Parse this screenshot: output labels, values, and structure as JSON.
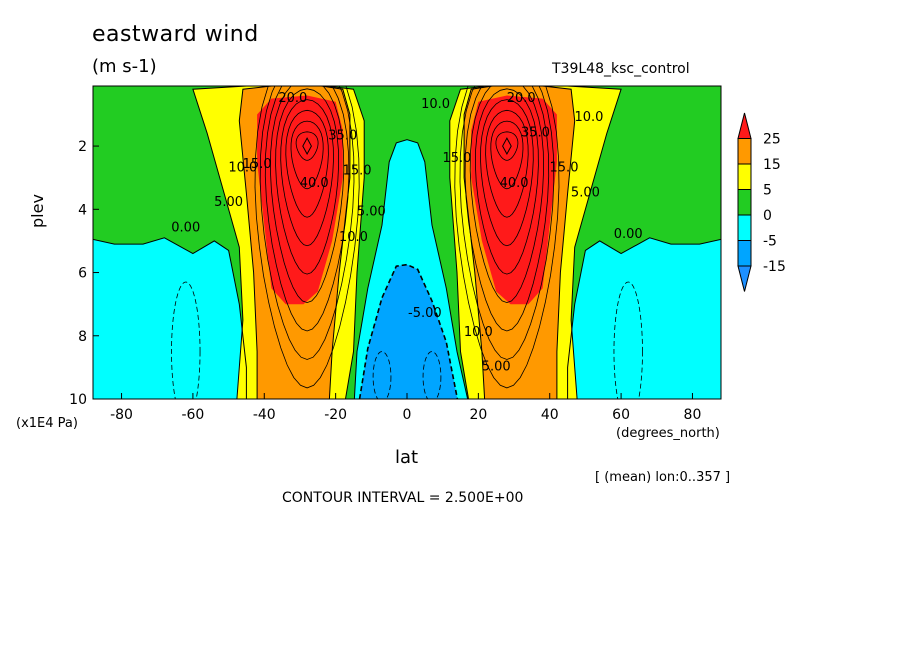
{
  "chart_data": {
    "type": "heatmap",
    "title": "eastward wind",
    "subtitle": "(m s-1)",
    "run_label": "T39L48_ksc_control",
    "xlabel": "lat",
    "x_units": "(degrees_north)",
    "ylabel": "plev",
    "y_units": "(x1E4 Pa)",
    "annotation": "[ (mean) lon:0..357 ]",
    "contour_interval_label": "CONTOUR INTERVAL = 2.500E+00",
    "xlim": [
      -88,
      88
    ],
    "ylim": [
      10,
      0.1
    ],
    "y_reversed": true,
    "x_ticks": [
      -80,
      -60,
      -40,
      -20,
      0,
      20,
      40,
      60,
      80
    ],
    "x_tick_labels": [
      "-80",
      "-60",
      "-40",
      "-20",
      "0",
      "20",
      "40",
      "60",
      "80"
    ],
    "y_ticks": [
      2,
      4,
      6,
      8,
      10
    ],
    "y_tick_labels": [
      "2",
      "4",
      "6",
      "8",
      "10"
    ],
    "colorbar": {
      "levels": [
        -15,
        -5,
        0,
        5,
        15,
        25
      ],
      "labels": [
        "25",
        "15",
        "5",
        "0",
        "-5",
        "-15"
      ],
      "colors": {
        "below_-15": "#1e90ff",
        "-15_to_-5": "#00a5ff",
        "-5_to_0": "#00ffff",
        "0_to_5": "#22cc22",
        "5_to_15": "#ffff00",
        "15_to_25": "#ff9900",
        "above_25": "#ff1a1a"
      }
    },
    "contour_labels": [
      {
        "text": "0.00",
        "x": -62,
        "y": 4.7
      },
      {
        "text": "0.00",
        "x": 62,
        "y": 4.9
      },
      {
        "text": "5.00",
        "x": -50,
        "y": 3.9
      },
      {
        "text": "5.00",
        "x": 50,
        "y": 3.6
      },
      {
        "text": "5.00",
        "x": 25,
        "y": 9.1
      },
      {
        "text": "10.0",
        "x": -46,
        "y": 2.8
      },
      {
        "text": "10.0",
        "x": 51,
        "y": 1.2
      },
      {
        "text": "10.0",
        "x": -15,
        "y": 5.0
      },
      {
        "text": "10.0",
        "x": 20,
        "y": 8.0
      },
      {
        "text": "10.0",
        "x": 8,
        "y": 0.8
      },
      {
        "text": "15.0",
        "x": -42,
        "y": 2.7
      },
      {
        "text": "15.0",
        "x": 44,
        "y": 2.8
      },
      {
        "text": "15.0",
        "x": -14,
        "y": 2.9
      },
      {
        "text": "15.0",
        "x": 14,
        "y": 2.5
      },
      {
        "text": "20.0",
        "x": -32,
        "y": 0.6
      },
      {
        "text": "20.0",
        "x": 32,
        "y": 0.6
      },
      {
        "text": "35.0",
        "x": -18,
        "y": 1.8
      },
      {
        "text": "35.0",
        "x": 36,
        "y": 1.7
      },
      {
        "text": "40.0",
        "x": -26,
        "y": 3.3
      },
      {
        "text": "40.0",
        "x": 30,
        "y": 3.3
      },
      {
        "text": "5.00",
        "x": -10,
        "y": 4.2
      },
      {
        "text": "-5.00",
        "x": 5,
        "y": 7.4
      }
    ],
    "jet_maxima": [
      {
        "lat": -28,
        "plev": 2.0,
        "value_range": "above 25"
      },
      {
        "lat": 28,
        "plev": 2.0,
        "value_range": "above 25"
      }
    ],
    "equatorial_minimum": {
      "lat": 0,
      "plev": 9.5,
      "value_range": "-15 to -5"
    }
  }
}
